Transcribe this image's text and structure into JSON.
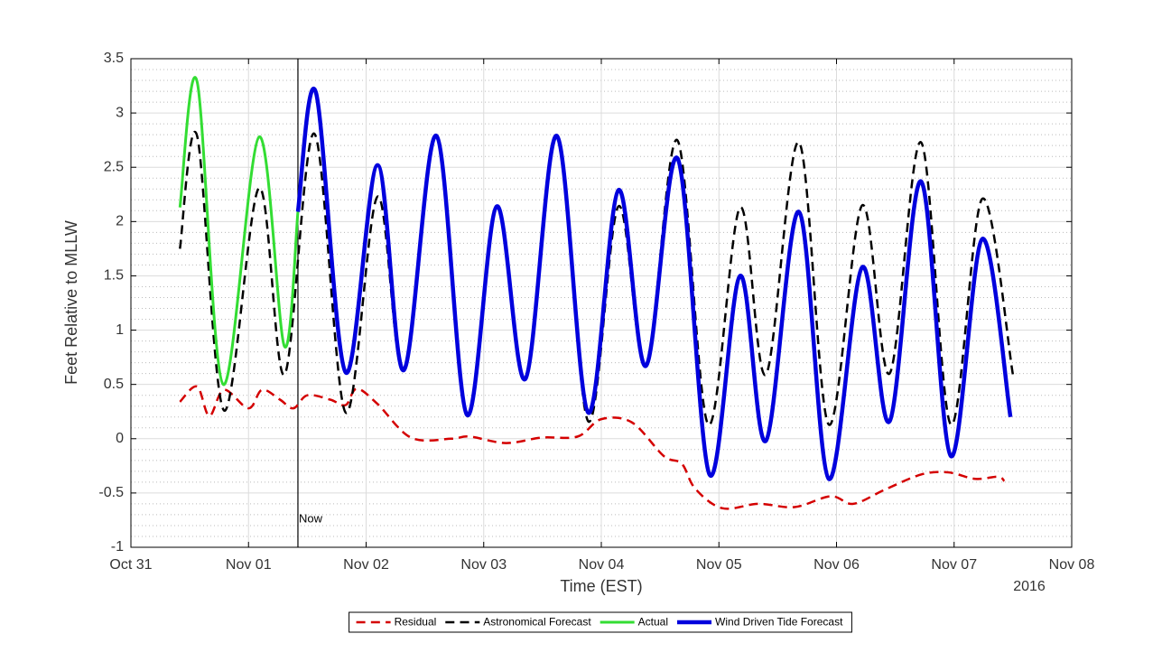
{
  "chart_data": {
    "type": "line",
    "x_label": "Time (EST)",
    "y_label": "Feet Relative to MLLW",
    "year_label": "2016",
    "xlim": [
      "2016-10-31T00:00",
      "2016-11-08T00:00"
    ],
    "xticks": [
      {
        "value": "2016-10-31T00:00",
        "label": "Oct 31"
      },
      {
        "value": "2016-11-01T00:00",
        "label": "Nov 01"
      },
      {
        "value": "2016-11-02T00:00",
        "label": "Nov 02"
      },
      {
        "value": "2016-11-03T00:00",
        "label": "Nov 03"
      },
      {
        "value": "2016-11-04T00:00",
        "label": "Nov 04"
      },
      {
        "value": "2016-11-05T00:00",
        "label": "Nov 05"
      },
      {
        "value": "2016-11-06T00:00",
        "label": "Nov 06"
      },
      {
        "value": "2016-11-07T00:00",
        "label": "Nov 07"
      },
      {
        "value": "2016-11-08T00:00",
        "label": "Nov 08"
      }
    ],
    "ylim": [
      -1,
      3.5
    ],
    "yticks": [
      -1,
      -0.5,
      0,
      0.5,
      1,
      1.5,
      2,
      2.5,
      3,
      3.5
    ],
    "grid": true,
    "minor_grid": true,
    "legend": "bottom-outside",
    "annotations": [
      {
        "text": "Now",
        "x": "2016-11-01T10:05"
      }
    ],
    "series": [
      {
        "name": "Residual",
        "color": "#d40000",
        "linestyle": "dashed",
        "linewidth": 2.5,
        "x": [
          "2016-10-31T10:00",
          "2016-10-31T13:30",
          "2016-10-31T16:00",
          "2016-10-31T19:00",
          "2016-11-01T00:00",
          "2016-11-01T02:45",
          "2016-11-01T06:25",
          "2016-11-01T09:10",
          "2016-11-01T12:00",
          "2016-11-01T16:40",
          "2016-11-01T19:50",
          "2016-11-01T22:05",
          "2016-11-02T02:20",
          "2016-11-02T09:10",
          "2016-11-02T17:25",
          "2016-11-02T21:05",
          "2016-11-03T04:30",
          "2016-11-03T11:50",
          "2016-11-03T19:10",
          "2016-11-04T00:00",
          "2016-11-04T06:15",
          "2016-11-04T12:45",
          "2016-11-04T16:25",
          "2016-11-04T19:10",
          "2016-11-05T00:40",
          "2016-11-05T08:05",
          "2016-11-05T15:25",
          "2016-11-05T22:50",
          "2016-11-06T03:25",
          "2016-11-06T09:50",
          "2016-11-06T17:15",
          "2016-11-06T22:45",
          "2016-11-07T04:20",
          "2016-11-07T08:55",
          "2016-11-07T10:15"
        ],
        "values": [
          0.34,
          0.48,
          0.21,
          0.45,
          0.28,
          0.45,
          0.36,
          0.28,
          0.4,
          0.36,
          0.31,
          0.46,
          0.32,
          0.01,
          0.0,
          0.02,
          -0.04,
          0.01,
          0.02,
          0.18,
          0.15,
          -0.16,
          -0.23,
          -0.46,
          -0.64,
          -0.6,
          -0.63,
          -0.53,
          -0.6,
          -0.47,
          -0.33,
          -0.31,
          -0.37,
          -0.35,
          -0.39
        ]
      },
      {
        "name": "Astronomical Forecast",
        "color": "#000000",
        "linestyle": "dashed",
        "linewidth": 2.5,
        "x": [
          "2016-10-31T10:00",
          "2016-10-31T13:30",
          "2016-10-31T19:00",
          "2016-11-01T02:10",
          "2016-11-01T07:20",
          "2016-11-01T13:25",
          "2016-11-01T19:50",
          "2016-11-02T02:20",
          "2016-11-02T07:40",
          "2016-11-02T14:20",
          "2016-11-02T20:35",
          "2016-11-03T02:40",
          "2016-11-03T08:30",
          "2016-11-03T14:55",
          "2016-11-03T21:20",
          "2016-11-04T03:30",
          "2016-11-04T09:05",
          "2016-11-04T15:30",
          "2016-11-04T21:50",
          "2016-11-05T04:20",
          "2016-11-05T09:35",
          "2016-11-05T16:20",
          "2016-11-05T22:25",
          "2016-11-06T05:15",
          "2016-11-06T10:50",
          "2016-11-06T17:15",
          "2016-11-06T23:20",
          "2016-11-07T05:45",
          "2016-11-07T12:00"
        ],
        "values": [
          1.75,
          2.79,
          0.26,
          2.31,
          0.59,
          2.81,
          0.24,
          2.23,
          0.63,
          2.79,
          0.21,
          2.14,
          0.55,
          2.79,
          0.16,
          2.14,
          0.67,
          2.75,
          0.13,
          2.13,
          0.59,
          2.73,
          0.13,
          2.15,
          0.6,
          2.73,
          0.13,
          2.21,
          0.59
        ]
      },
      {
        "name": "Actual",
        "color": "#33dd33",
        "linestyle": "solid",
        "linewidth": 3,
        "x": [
          "2016-10-31T10:00",
          "2016-10-31T13:30",
          "2016-10-31T18:50",
          "2016-11-01T02:10",
          "2016-11-01T07:20",
          "2016-11-01T10:05"
        ],
        "values": [
          2.13,
          3.29,
          0.5,
          2.78,
          0.85,
          2.09
        ]
      },
      {
        "name": "Wind Driven Tide Forecast",
        "color": "#0000dd",
        "linestyle": "solid",
        "linewidth": 4.5,
        "x": [
          "2016-11-01T10:05",
          "2016-11-01T13:45",
          "2016-11-01T19:50",
          "2016-11-02T02:20",
          "2016-11-02T07:40",
          "2016-11-02T14:20",
          "2016-11-02T20:35",
          "2016-11-03T02:40",
          "2016-11-03T08:30",
          "2016-11-03T14:55",
          "2016-11-03T21:20",
          "2016-11-04T03:30",
          "2016-11-04T09:05",
          "2016-11-04T15:35",
          "2016-11-04T22:05",
          "2016-11-05T04:20",
          "2016-11-05T09:35",
          "2016-11-05T16:20",
          "2016-11-05T22:25",
          "2016-11-06T05:15",
          "2016-11-06T10:50",
          "2016-11-06T17:15",
          "2016-11-06T23:20",
          "2016-11-07T05:45",
          "2016-11-07T11:30"
        ],
        "values": [
          2.09,
          3.19,
          0.61,
          2.52,
          0.63,
          2.79,
          0.22,
          2.14,
          0.55,
          2.79,
          0.24,
          2.29,
          0.67,
          2.58,
          -0.33,
          1.5,
          -0.02,
          2.09,
          -0.37,
          1.58,
          0.16,
          2.37,
          -0.16,
          1.84,
          0.2
        ]
      }
    ]
  }
}
